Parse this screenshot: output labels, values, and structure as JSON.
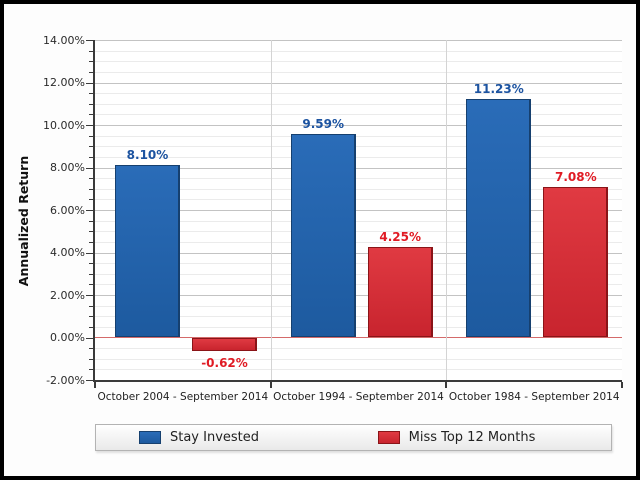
{
  "chart_data": {
    "type": "bar",
    "title": "",
    "xlabel": "",
    "ylabel": "Annualized Return",
    "categories": [
      "October 2004 - September 2014",
      "October 1994 - September 2014",
      "October 1984 - September 2014"
    ],
    "series": [
      {
        "name": "Stay Invested",
        "values": [
          8.1,
          9.59,
          11.23
        ],
        "labels": [
          "8.10%",
          "9.59%",
          "11.23%"
        ],
        "fill_top": "#2a6cb8",
        "fill_bottom": "#1d5a9f",
        "border": "#16406f",
        "label_color": "#1c53a0"
      },
      {
        "name": "Miss Top 12 Months",
        "values": [
          -0.62,
          4.25,
          7.08
        ],
        "labels": [
          "-0.62%",
          "4.25%",
          "7.08%"
        ],
        "fill_top": "#e03a42",
        "fill_bottom": "#c8242e",
        "border": "#8a1418",
        "label_color": "#e01b24"
      }
    ],
    "ylim": [
      -2,
      14
    ],
    "y_major_step": 2,
    "y_minor_step": 0.5,
    "y_tick_labels": [
      "14.00%",
      "12.00%",
      "10.00%",
      "8.00%",
      "6.00%",
      "4.00%",
      "2.00%",
      "0.00%",
      "-2.00%"
    ],
    "grid": true,
    "zero_line_color": "#d46a6a",
    "legend_position": "bottom"
  }
}
